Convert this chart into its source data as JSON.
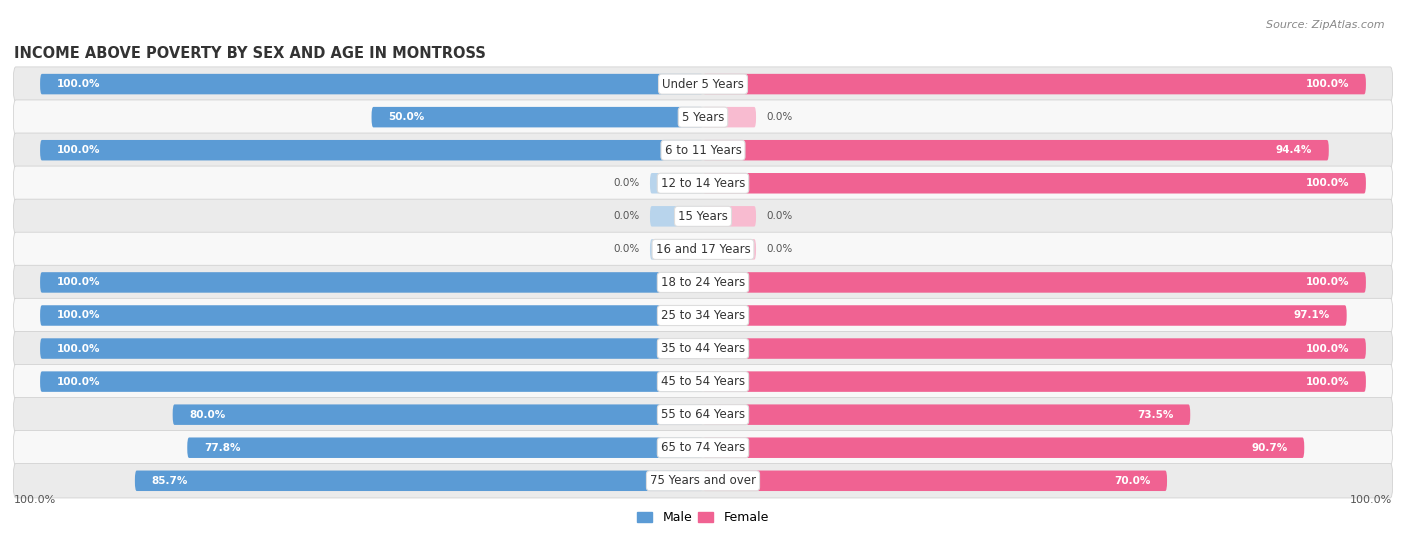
{
  "title": "INCOME ABOVE POVERTY BY SEX AND AGE IN MONTROSS",
  "source": "Source: ZipAtlas.com",
  "categories": [
    "Under 5 Years",
    "5 Years",
    "6 to 11 Years",
    "12 to 14 Years",
    "15 Years",
    "16 and 17 Years",
    "18 to 24 Years",
    "25 to 34 Years",
    "35 to 44 Years",
    "45 to 54 Years",
    "55 to 64 Years",
    "65 to 74 Years",
    "75 Years and over"
  ],
  "male_values": [
    100.0,
    50.0,
    100.0,
    0.0,
    0.0,
    0.0,
    100.0,
    100.0,
    100.0,
    100.0,
    80.0,
    77.8,
    85.7
  ],
  "female_values": [
    100.0,
    0.0,
    94.4,
    100.0,
    0.0,
    0.0,
    100.0,
    97.1,
    100.0,
    100.0,
    73.5,
    90.7,
    70.0
  ],
  "male_color": "#5b9bd5",
  "female_color": "#f06292",
  "male_color_light": "#b8d4ec",
  "female_color_light": "#f8bbd0",
  "row_bg_odd": "#ebebeb",
  "row_bg_even": "#f8f8f8",
  "label_bg": "#ffffff",
  "title_fontsize": 10.5,
  "label_fontsize": 8.5,
  "value_fontsize": 7.5,
  "legend_fontsize": 9,
  "source_fontsize": 8
}
